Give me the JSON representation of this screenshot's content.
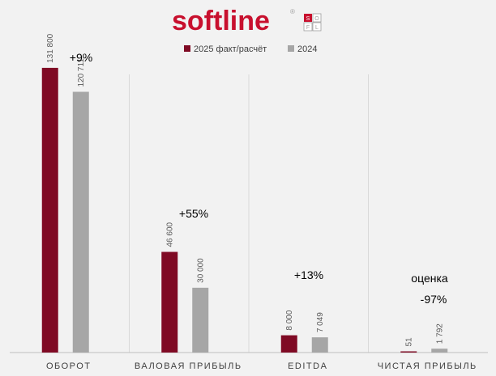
{
  "logo": {
    "text": "softline",
    "registered": "®",
    "box_letters": [
      "S",
      "O",
      "F",
      "L"
    ]
  },
  "colors": {
    "series_2025": "#7f0a24",
    "series_2024": "#a6a6a6",
    "logo_red": "#c8102e",
    "logo_grey": "#9e9e9e",
    "grid": "#d9d9d9",
    "axis": "#bfbfbf"
  },
  "chart_data": {
    "type": "bar",
    "title": "",
    "xlabel": "",
    "ylabel": "",
    "ylim": [
      0,
      140000
    ],
    "grid": false,
    "legend_position": "top-center",
    "categories": [
      "ОБОРОТ",
      "ВАЛОВАЯ ПРИБЫЛЬ",
      "EDITDA",
      "ЧИСТАЯ ПРИБЫЛЬ"
    ],
    "series": [
      {
        "name": "2025 факт/расчёт",
        "values": [
          131800,
          46600,
          8000,
          51
        ],
        "labels": [
          "131 800",
          "46 600",
          "8 000",
          "51"
        ]
      },
      {
        "name": "2024",
        "values": [
          120711,
          30000,
          7049,
          1792
        ],
        "labels": [
          "120 711",
          "30 000",
          "7 049",
          "1 792"
        ]
      }
    ],
    "annotations": [
      {
        "category": 0,
        "text": "+9%"
      },
      {
        "category": 1,
        "text": "+55%"
      },
      {
        "category": 2,
        "text": "+13%"
      },
      {
        "category": 3,
        "text": "оценка"
      },
      {
        "category": 3,
        "text": "-97%"
      }
    ]
  }
}
